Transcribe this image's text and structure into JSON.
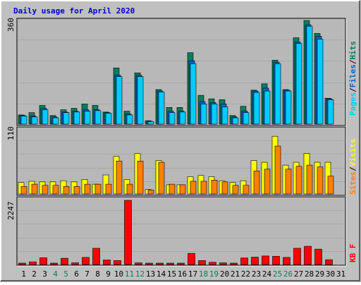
{
  "title": "Daily usage for April 2020",
  "colors": {
    "background": "#c0c0c0",
    "plot_bg": "#b8b8b8",
    "title_text": "#0000cc",
    "hits": "#00ccff",
    "hits_side": "#0080a0",
    "files": "#0066cc",
    "pages": "#00805c",
    "visits": "#ffff00",
    "sites": "#ff8000",
    "kbytes": "#ff0000",
    "weekend": "#00805c",
    "label_text": "#000000"
  },
  "chart_data": [
    {
      "type": "bar",
      "panel": "top",
      "scale_max_label": "360",
      "ylim": [
        0,
        360
      ],
      "legend": [
        {
          "name": "Pages",
          "color": "#00ccff"
        },
        {
          "name": "/",
          "color": "#000000"
        },
        {
          "name": "Files",
          "color": "#0066cc"
        },
        {
          "name": "/",
          "color": "#000000"
        },
        {
          "name": "Hits",
          "color": "#00805c"
        }
      ],
      "categories": [
        1,
        2,
        3,
        4,
        5,
        6,
        7,
        8,
        9,
        10,
        11,
        12,
        13,
        14,
        15,
        16,
        17,
        18,
        19,
        20,
        21,
        22,
        23,
        24,
        25,
        26,
        27,
        28,
        29,
        30,
        31
      ],
      "series": [
        {
          "name": "Hits",
          "values": [
            32,
            40,
            65,
            30,
            50,
            55,
            70,
            65,
            42,
            195,
            45,
            178,
            12,
            120,
            58,
            58,
            248,
            100,
            88,
            85,
            30,
            62,
            118,
            140,
            222,
            120,
            300,
            360,
            315,
            90,
            0
          ]
        },
        {
          "name": "Files",
          "values": [
            30,
            28,
            55,
            25,
            42,
            45,
            50,
            50,
            40,
            170,
            35,
            170,
            10,
            115,
            45,
            45,
            220,
            78,
            75,
            70,
            25,
            45,
            115,
            125,
            215,
            118,
            285,
            345,
            305,
            88,
            0
          ]
        },
        {
          "name": "Pages",
          "values": [
            28,
            25,
            50,
            22,
            40,
            42,
            45,
            47,
            38,
            165,
            32,
            165,
            9,
            112,
            40,
            42,
            210,
            70,
            70,
            60,
            22,
            40,
            110,
            115,
            210,
            115,
            280,
            340,
            295,
            85,
            0
          ]
        }
      ]
    },
    {
      "type": "bar",
      "panel": "middle",
      "scale_max_label": "110",
      "ylim": [
        0,
        110
      ],
      "legend": [
        {
          "name": "Sites",
          "color": "#ff8000"
        },
        {
          "name": "/",
          "color": "#000000"
        },
        {
          "name": "Visits",
          "color": "#ffff00"
        }
      ],
      "categories": [
        1,
        2,
        3,
        4,
        5,
        6,
        7,
        8,
        9,
        10,
        11,
        12,
        13,
        14,
        15,
        16,
        17,
        18,
        19,
        20,
        21,
        22,
        23,
        24,
        25,
        26,
        27,
        28,
        29,
        30,
        31
      ],
      "series": [
        {
          "name": "Visits",
          "values": [
            20,
            22,
            21,
            21,
            23,
            21,
            25,
            17,
            33,
            65,
            25,
            70,
            8,
            58,
            16,
            16,
            30,
            32,
            30,
            23,
            20,
            23,
            58,
            55,
            100,
            50,
            55,
            70,
            55,
            55,
            0
          ]
        },
        {
          "name": "Sites",
          "values": [
            13,
            17,
            15,
            15,
            13,
            13,
            17,
            17,
            17,
            57,
            17,
            57,
            7,
            55,
            17,
            16,
            22,
            22,
            24,
            21,
            15,
            15,
            40,
            43,
            83,
            43,
            48,
            50,
            47,
            31,
            0
          ]
        }
      ]
    },
    {
      "type": "bar",
      "panel": "bottom",
      "scale_max_label": "2247",
      "ylim": [
        0,
        2247
      ],
      "legend": [
        {
          "name": "KB F",
          "color": "#ff0000"
        }
      ],
      "categories": [
        1,
        2,
        3,
        4,
        5,
        6,
        7,
        8,
        9,
        10,
        11,
        12,
        13,
        14,
        15,
        16,
        17,
        18,
        19,
        20,
        21,
        22,
        23,
        24,
        25,
        26,
        27,
        28,
        29,
        30,
        31
      ],
      "series": [
        {
          "name": "KB F",
          "values": [
            50,
            95,
            240,
            30,
            220,
            60,
            250,
            570,
            160,
            140,
            2247,
            60,
            30,
            30,
            40,
            40,
            390,
            140,
            80,
            60,
            50,
            230,
            260,
            300,
            290,
            250,
            570,
            640,
            540,
            170,
            0
          ]
        }
      ]
    }
  ],
  "x_axis": {
    "labels": [
      "1",
      "2",
      "3",
      "4",
      "5",
      "6",
      "7",
      "8",
      "9",
      "10",
      "11",
      "12",
      "13",
      "14",
      "15",
      "16",
      "17",
      "18",
      "19",
      "20",
      "21",
      "22",
      "23",
      "24",
      "25",
      "26",
      "27",
      "28",
      "29",
      "30",
      "31"
    ],
    "weekend_days": [
      4,
      5,
      11,
      12,
      18,
      19,
      25,
      26
    ]
  }
}
